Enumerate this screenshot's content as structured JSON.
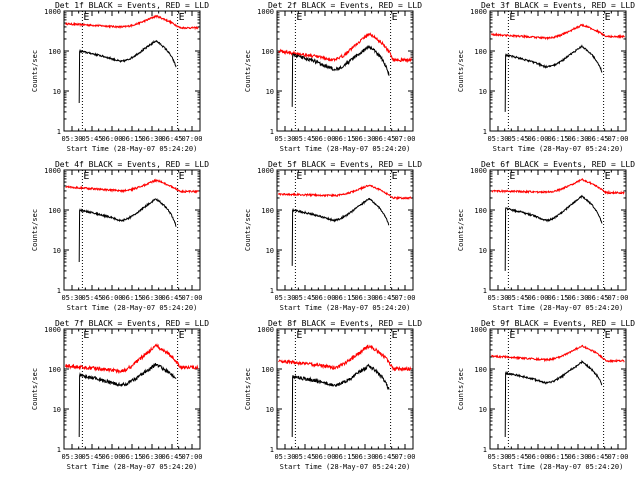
{
  "panel_titles": [
    "Det 1f BLACK = Events, RED = LLD",
    "Det 2f BLACK = Events, RED = LLD",
    "Det 3f BLACK = Events, RED = LLD",
    "Det 4f BLACK = Events, RED = LLD",
    "Det 5f BLACK = Events, RED = LLD",
    "Det 6f BLACK = Events, RED = LLD",
    "Det 7f BLACK = Events, RED = LLD",
    "Det 8f BLACK = Events, RED = LLD",
    "Det 9f BLACK = Events, RED = LLD"
  ],
  "chart_data": {
    "type": "line",
    "layout": "3x3 small multiples",
    "ylabel": "Counts/sec",
    "xlabel": "Start Time (28-May-07 05:24:20)",
    "yscale": "log",
    "ylim": [
      1,
      1000
    ],
    "y_ticks": [
      "1",
      "10",
      "100",
      "1000"
    ],
    "x_ticks": [
      "05:30",
      "05:45",
      "06:00",
      "06:15",
      "06:30",
      "06:45",
      "07:00"
    ],
    "xlim_hours": [
      5.4,
      7.1
    ],
    "marker_letter": "E",
    "marker_times_hours": [
      5.63,
      6.82
    ],
    "colors": {
      "events": "#000000",
      "lld": "#ff0000"
    },
    "legend": "in panel title",
    "panels": [
      {
        "detector": "1f",
        "events_start_hours": 5.59,
        "events_spike_min": 5,
        "events_base": 100,
        "events_dip": 55,
        "events_peak": 180,
        "events_end": 40,
        "lld_base": 480,
        "lld_dip": 400,
        "lld_peak": 750,
        "lld_end": 380,
        "noise": 0.05
      },
      {
        "detector": "2f",
        "events_start_hours": 5.59,
        "events_spike_min": 4,
        "events_base": 80,
        "events_dip": 35,
        "events_peak": 130,
        "events_end": 25,
        "lld_base": 100,
        "lld_dip": 60,
        "lld_peak": 270,
        "lld_end": 60,
        "noise": 0.09
      },
      {
        "detector": "3f",
        "events_start_hours": 5.59,
        "events_spike_min": 3,
        "events_base": 80,
        "events_dip": 40,
        "events_peak": 130,
        "events_end": 30,
        "lld_base": 260,
        "lld_dip": 210,
        "lld_peak": 450,
        "lld_end": 230,
        "noise": 0.05
      },
      {
        "detector": "4f",
        "events_start_hours": 5.59,
        "events_spike_min": 5,
        "events_base": 100,
        "events_dip": 55,
        "events_peak": 190,
        "events_end": 40,
        "lld_base": 380,
        "lld_dip": 300,
        "lld_peak": 560,
        "lld_end": 290,
        "noise": 0.05
      },
      {
        "detector": "5f",
        "events_start_hours": 5.59,
        "events_spike_min": 4,
        "events_base": 100,
        "events_dip": 55,
        "events_peak": 190,
        "events_end": 40,
        "lld_base": 250,
        "lld_dip": 230,
        "lld_peak": 420,
        "lld_end": 200,
        "noise": 0.05
      },
      {
        "detector": "6f",
        "events_start_hours": 5.59,
        "events_spike_min": 3,
        "events_base": 110,
        "events_dip": 55,
        "events_peak": 220,
        "events_end": 45,
        "lld_base": 300,
        "lld_dip": 280,
        "lld_peak": 580,
        "lld_end": 270,
        "noise": 0.05
      },
      {
        "detector": "7f",
        "events_start_hours": 5.59,
        "events_spike_min": 2,
        "events_base": 70,
        "events_dip": 40,
        "events_peak": 130,
        "events_end": 55,
        "lld_base": 120,
        "lld_dip": 90,
        "lld_peak": 380,
        "lld_end": 110,
        "noise": 0.1
      },
      {
        "detector": "8f",
        "events_start_hours": 5.59,
        "events_spike_min": 2,
        "events_base": 65,
        "events_dip": 40,
        "events_peak": 120,
        "events_end": 30,
        "lld_base": 160,
        "lld_dip": 110,
        "lld_peak": 380,
        "lld_end": 100,
        "noise": 0.1
      },
      {
        "detector": "9f",
        "events_start_hours": 5.59,
        "events_spike_min": 2,
        "events_base": 80,
        "events_dip": 45,
        "events_peak": 150,
        "events_end": 40,
        "lld_base": 210,
        "lld_dip": 170,
        "lld_peak": 380,
        "lld_end": 160,
        "noise": 0.05
      }
    ]
  }
}
